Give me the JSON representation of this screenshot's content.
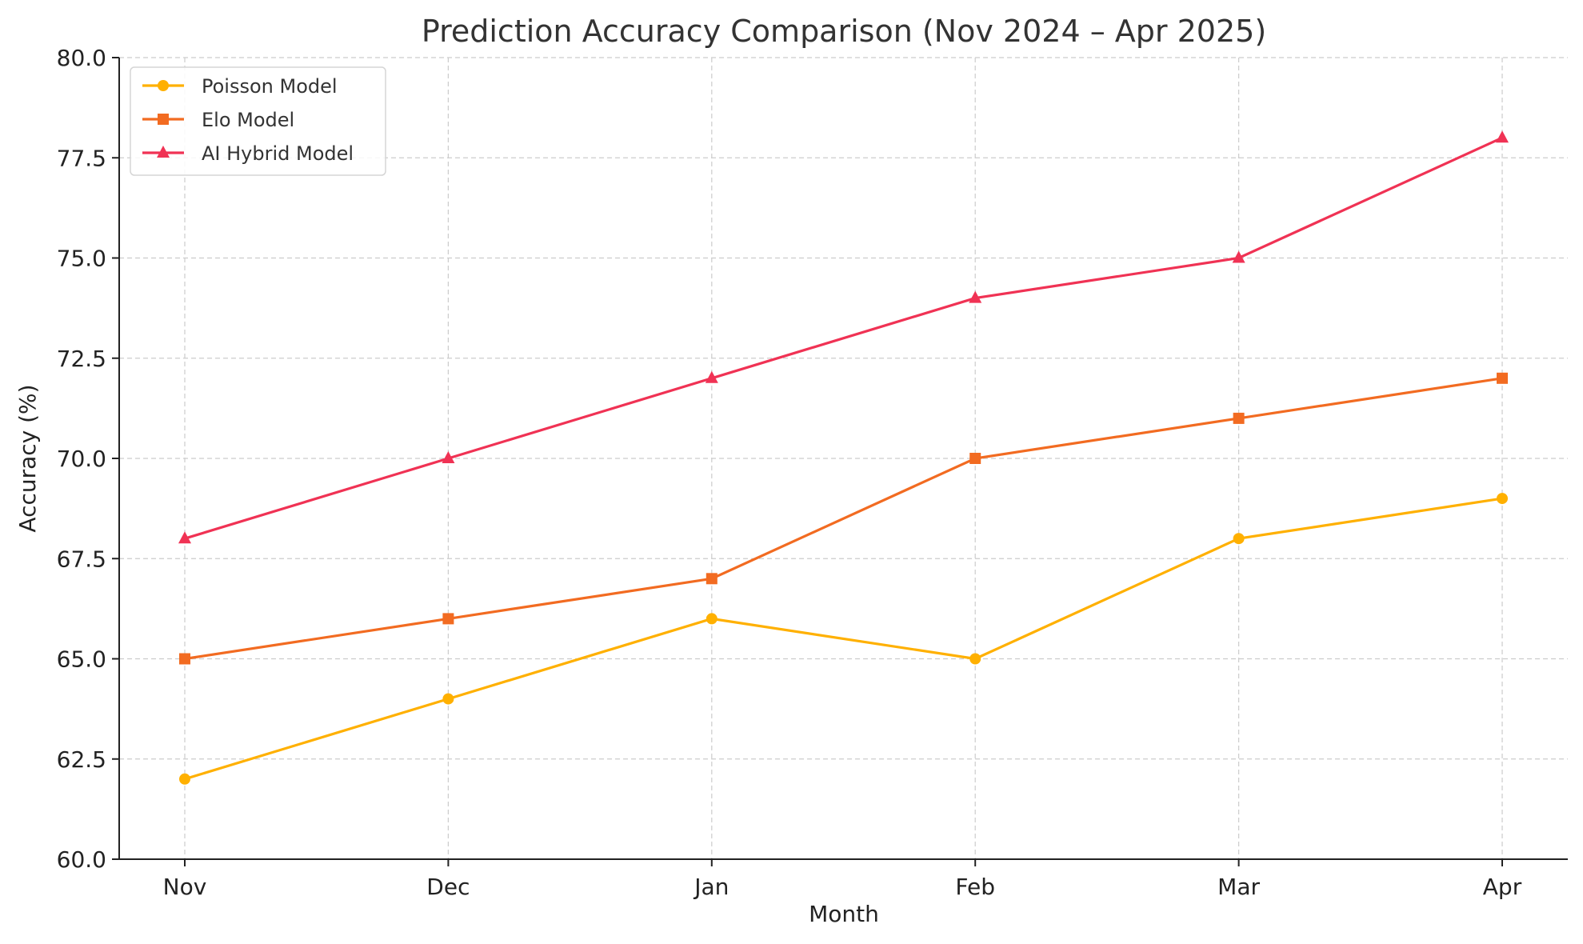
{
  "chart_data": {
    "type": "line",
    "title": "Prediction Accuracy Comparison (Nov 2024 – Apr 2025)",
    "xlabel": "Month",
    "ylabel": "Accuracy (%)",
    "categories": [
      "Nov",
      "Dec",
      "Jan",
      "Feb",
      "Mar",
      "Apr"
    ],
    "ylim": [
      60,
      80
    ],
    "yticks": [
      "60.0",
      "62.5",
      "65.0",
      "67.5",
      "70.0",
      "72.5",
      "75.0",
      "77.5",
      "80.0"
    ],
    "grid": true,
    "legend_position": "top-left",
    "series": [
      {
        "name": "Poisson Model",
        "values": [
          62,
          64,
          66,
          65,
          68,
          69
        ],
        "color": "#FFB000",
        "marker": "circle"
      },
      {
        "name": "Elo Model",
        "values": [
          65,
          66,
          67,
          70,
          71,
          72
        ],
        "color": "#F26B21",
        "marker": "square"
      },
      {
        "name": "AI Hybrid Model",
        "values": [
          68,
          70,
          72,
          74,
          75,
          78
        ],
        "color": "#F03254",
        "marker": "triangle"
      }
    ]
  }
}
